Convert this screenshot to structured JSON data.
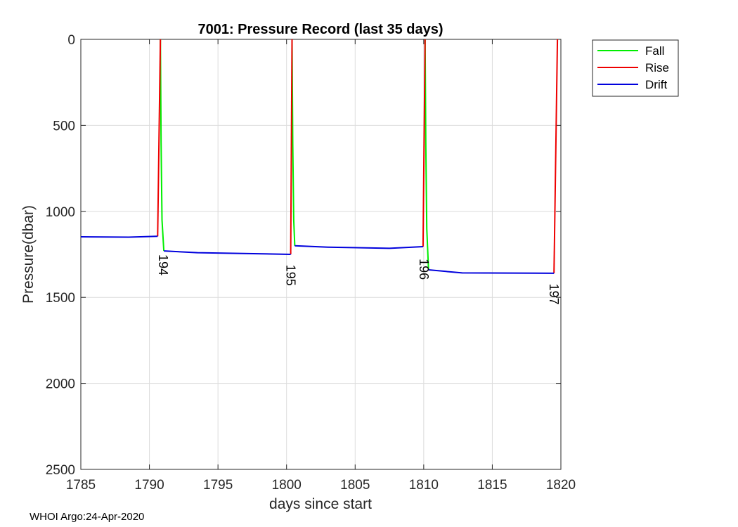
{
  "chart_data": {
    "type": "line",
    "title": "7001: Pressure Record (last 35 days)",
    "xlabel": "days since start",
    "ylabel": "Pressure(dbar)",
    "xlim": [
      1785,
      1820
    ],
    "ylim": [
      0,
      2500
    ],
    "y_reversed": true,
    "grid": true,
    "xticks": [
      1785,
      1790,
      1795,
      1800,
      1805,
      1810,
      1815,
      1820
    ],
    "yticks": [
      0,
      500,
      1000,
      1500,
      2000,
      2500
    ],
    "legend_position": "outside-top-right",
    "series": [
      {
        "name": "Fall",
        "color": "#00ee00",
        "segments": [
          [
            [
              1790.8,
              0
            ],
            [
              1790.85,
              600
            ],
            [
              1790.92,
              1050
            ],
            [
              1791.05,
              1230
            ]
          ],
          [
            [
              1800.4,
              0
            ],
            [
              1800.45,
              600
            ],
            [
              1800.52,
              1050
            ],
            [
              1800.6,
              1200
            ]
          ],
          [
            [
              1810.1,
              0
            ],
            [
              1810.15,
              600
            ],
            [
              1810.22,
              1100
            ],
            [
              1810.35,
              1340
            ]
          ]
        ]
      },
      {
        "name": "Rise",
        "color": "#ee0000",
        "segments": [
          [
            [
              1790.6,
              1145
            ],
            [
              1790.8,
              0
            ]
          ],
          [
            [
              1800.3,
              1250
            ],
            [
              1800.4,
              0
            ]
          ],
          [
            [
              1809.95,
              1205
            ],
            [
              1810.1,
              0
            ]
          ],
          [
            [
              1819.5,
              1360
            ],
            [
              1819.75,
              0
            ]
          ]
        ]
      },
      {
        "name": "Drift",
        "color": "#0000dd",
        "segments": [
          [
            [
              1785.0,
              1148
            ],
            [
              1788.5,
              1150
            ],
            [
              1790.6,
              1145
            ]
          ],
          [
            [
              1791.05,
              1230
            ],
            [
              1793.5,
              1240
            ],
            [
              1800.3,
              1250
            ]
          ],
          [
            [
              1800.6,
              1200
            ],
            [
              1803.0,
              1208
            ],
            [
              1807.5,
              1215
            ],
            [
              1809.95,
              1205
            ]
          ],
          [
            [
              1810.35,
              1340
            ],
            [
              1812.8,
              1358
            ],
            [
              1819.5,
              1360
            ]
          ]
        ]
      }
    ],
    "annotations": [
      {
        "text": "194",
        "x": 1791.0,
        "y": 1250
      },
      {
        "text": "195",
        "x": 1800.3,
        "y": 1310
      },
      {
        "text": "196",
        "x": 1810.0,
        "y": 1275
      },
      {
        "text": "197",
        "x": 1819.5,
        "y": 1420
      }
    ]
  },
  "footer": "WHOI Argo:24-Apr-2020"
}
